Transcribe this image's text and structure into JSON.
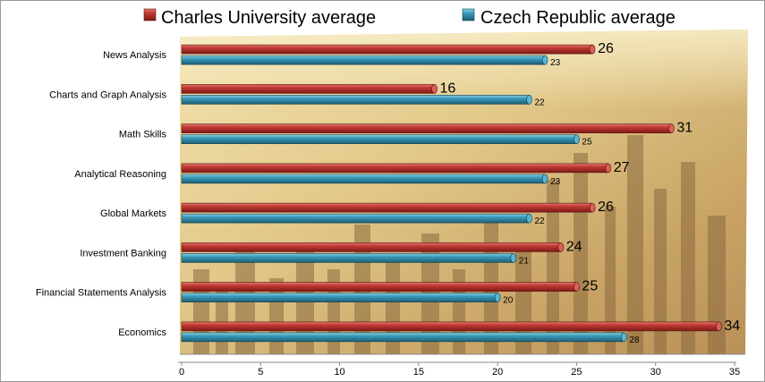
{
  "chart_data": {
    "type": "bar",
    "orientation": "horizontal",
    "categories": [
      "News Analysis",
      "Charts and Graph Analysis",
      "Math Skills",
      "Analytical Reasoning",
      "Global Markets",
      "Investment Banking",
      "Financial Statements Analysis",
      "Economics"
    ],
    "series": [
      {
        "name": "Charles University average",
        "color": "#b0302c",
        "values": [
          26,
          16,
          31,
          27,
          26,
          24,
          25,
          34
        ]
      },
      {
        "name": "Czech Republic average",
        "color": "#2e8ba8",
        "values": [
          23,
          22,
          25,
          23,
          22,
          21,
          20,
          28
        ]
      }
    ],
    "xlim": [
      0,
      35
    ],
    "xticks": [
      "0",
      "5",
      "10",
      "15",
      "20",
      "25",
      "30",
      "35"
    ],
    "legend_position": "top",
    "background": "city skyline photo",
    "grid": false
  }
}
